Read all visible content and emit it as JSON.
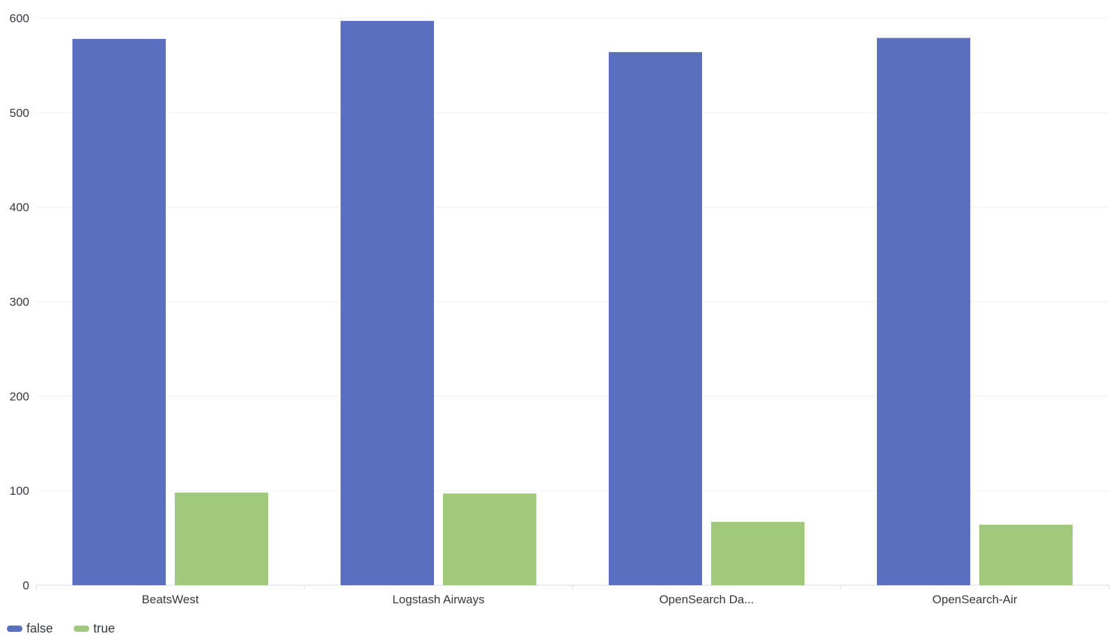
{
  "chart_data": {
    "type": "bar",
    "categories": [
      "BeatsWest",
      "Logstash Airways",
      "OpenSearch Da...",
      "OpenSearch-Air"
    ],
    "series": [
      {
        "name": "false",
        "values": [
          578,
          597,
          564,
          579
        ],
        "color": "#5b6fc1"
      },
      {
        "name": "true",
        "values": [
          98,
          97,
          67,
          64
        ],
        "color": "#a0c97c"
      }
    ],
    "yticks": [
      0,
      100,
      200,
      300,
      400,
      500,
      600
    ],
    "ylim": [
      0,
      600
    ],
    "grid": true,
    "legend_position": "bottom-left"
  }
}
